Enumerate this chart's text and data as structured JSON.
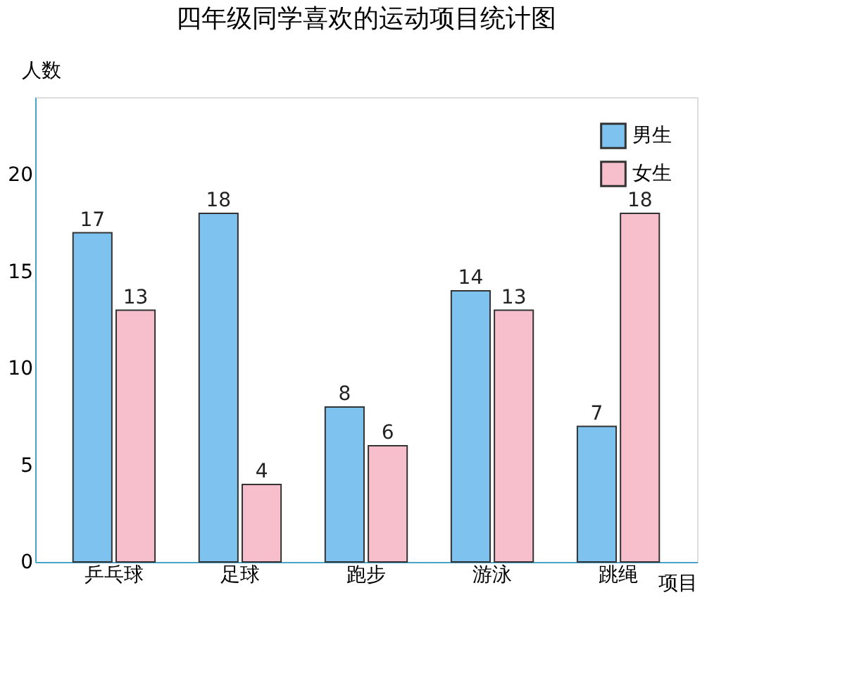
{
  "chart_data": {
    "type": "bar",
    "title": "四年级同学喜欢的运动项目统计图",
    "xlabel": "项目",
    "ylabel": "人数",
    "categories": [
      "乒乓球",
      "足球",
      "跑步",
      "游泳",
      "跳绳"
    ],
    "series": [
      {
        "name": "男生",
        "color": "#7ec3ef",
        "values": [
          17,
          18,
          8,
          14,
          7
        ]
      },
      {
        "name": "女生",
        "color": "#f7bfcb",
        "values": [
          13,
          4,
          6,
          13,
          18
        ]
      }
    ],
    "ylim": [
      0,
      24
    ],
    "yticks": [
      0,
      5,
      10,
      15,
      20
    ],
    "data_labels": true,
    "legend": "top right",
    "grid": false
  }
}
